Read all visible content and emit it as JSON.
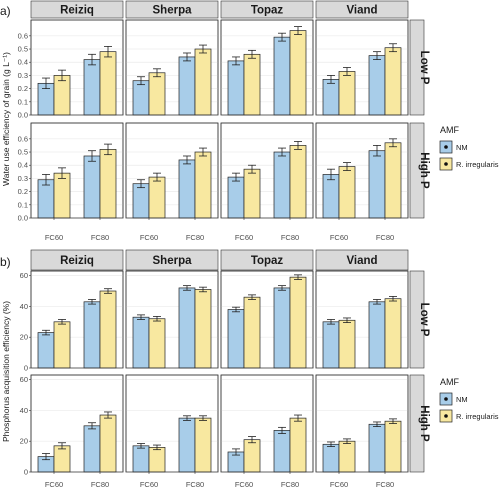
{
  "figure": {
    "legend": {
      "title": "AMF",
      "entries": [
        "NM",
        "R. irregularis"
      ],
      "colors": {
        "NM": "#a8cde9",
        "R. irregularis": "#f8e8a0"
      }
    },
    "panel_bg": "#ffffff",
    "strip_bg": "#d9d9d9",
    "grid_color": "#ebebeb"
  },
  "chart_data": [
    {
      "type": "bar",
      "panel_label": "a)",
      "ylabel": "Water use efficiency of grain (g L⁻¹)",
      "columns": [
        "Reiziq",
        "Sherpa",
        "Topaz",
        "Viand"
      ],
      "rows": [
        "Low P",
        "High P"
      ],
      "categories": [
        "FC60",
        "FC80"
      ],
      "ylim": [
        0,
        0.72
      ],
      "yticks": [
        0.0,
        0.1,
        0.2,
        0.3,
        0.4,
        0.5,
        0.6
      ],
      "ytick_labels": [
        "0.0",
        "0.1",
        "0.2",
        "0.3",
        "0.4",
        "0.5",
        "0.6"
      ],
      "series_names": [
        "NM",
        "R. irregularis"
      ],
      "data": {
        "Low P": {
          "Reiziq": {
            "NM": [
              0.24,
              0.42
            ],
            "R. irregularis": [
              0.3,
              0.48
            ]
          },
          "Sherpa": {
            "NM": [
              0.26,
              0.44
            ],
            "R. irregularis": [
              0.32,
              0.5
            ]
          },
          "Topaz": {
            "NM": [
              0.41,
              0.59
            ],
            "R. irregularis": [
              0.46,
              0.64
            ]
          },
          "Viand": {
            "NM": [
              0.27,
              0.45
            ],
            "R. irregularis": [
              0.33,
              0.51
            ]
          }
        },
        "High P": {
          "Reiziq": {
            "NM": [
              0.29,
              0.47
            ],
            "R. irregularis": [
              0.34,
              0.52
            ]
          },
          "Sherpa": {
            "NM": [
              0.26,
              0.44
            ],
            "R. irregularis": [
              0.31,
              0.5
            ]
          },
          "Topaz": {
            "NM": [
              0.31,
              0.5
            ],
            "R. irregularis": [
              0.37,
              0.55
            ]
          },
          "Viand": {
            "NM": [
              0.33,
              0.51
            ],
            "R. irregularis": [
              0.39,
              0.57
            ]
          }
        }
      },
      "errors": {
        "Low P": {
          "Reiziq": {
            "NM": [
              0.04,
              0.04
            ],
            "R. irregularis": [
              0.04,
              0.04
            ]
          },
          "Sherpa": {
            "NM": [
              0.03,
              0.03
            ],
            "R. irregularis": [
              0.03,
              0.03
            ]
          },
          "Topaz": {
            "NM": [
              0.03,
              0.03
            ],
            "R. irregularis": [
              0.03,
              0.03
            ]
          },
          "Viand": {
            "NM": [
              0.03,
              0.03
            ],
            "R. irregularis": [
              0.03,
              0.03
            ]
          }
        },
        "High P": {
          "Reiziq": {
            "NM": [
              0.04,
              0.04
            ],
            "R. irregularis": [
              0.04,
              0.04
            ]
          },
          "Sherpa": {
            "NM": [
              0.03,
              0.03
            ],
            "R. irregularis": [
              0.03,
              0.03
            ]
          },
          "Topaz": {
            "NM": [
              0.03,
              0.03
            ],
            "R. irregularis": [
              0.03,
              0.03
            ]
          },
          "Viand": {
            "NM": [
              0.04,
              0.04
            ],
            "R. irregularis": [
              0.03,
              0.03
            ]
          }
        }
      }
    },
    {
      "type": "bar",
      "panel_label": "b)",
      "ylabel": "Phosphorus acquisition efficiency (%)",
      "columns": [
        "Reiziq",
        "Sherpa",
        "Topaz",
        "Viand"
      ],
      "rows": [
        "Low P",
        "High P"
      ],
      "categories": [
        "FC60",
        "FC80"
      ],
      "ylim": [
        0,
        63
      ],
      "yticks": [
        0,
        20,
        40,
        60
      ],
      "ytick_labels": [
        "0",
        "20",
        "40",
        "60"
      ],
      "series_names": [
        "NM",
        "R. irregularis"
      ],
      "data": {
        "Low P": {
          "Reiziq": {
            "NM": [
              23,
              43
            ],
            "R. irregularis": [
              30,
              50
            ]
          },
          "Sherpa": {
            "NM": [
              33,
              52
            ],
            "R. irregularis": [
              32,
              51
            ]
          },
          "Topaz": {
            "NM": [
              38,
              52
            ],
            "R. irregularis": [
              46,
              59
            ]
          },
          "Viand": {
            "NM": [
              30,
              43
            ],
            "R. irregularis": [
              31,
              45
            ]
          }
        },
        "High P": {
          "Reiziq": {
            "NM": [
              10,
              30
            ],
            "R. irregularis": [
              17,
              37
            ]
          },
          "Sherpa": {
            "NM": [
              17,
              35
            ],
            "R. irregularis": [
              16,
              35
            ]
          },
          "Topaz": {
            "NM": [
              13,
              27
            ],
            "R. irregularis": [
              21,
              35
            ]
          },
          "Viand": {
            "NM": [
              18,
              31
            ],
            "R. irregularis": [
              20,
              33
            ]
          }
        }
      },
      "errors": {
        "Low P": {
          "Reiziq": {
            "NM": [
              1.5,
              1.5
            ],
            "R. irregularis": [
              1.5,
              1.5
            ]
          },
          "Sherpa": {
            "NM": [
              1.5,
              1.5
            ],
            "R. irregularis": [
              1.5,
              1.5
            ]
          },
          "Topaz": {
            "NM": [
              1.5,
              1.5
            ],
            "R. irregularis": [
              1.5,
              1.5
            ]
          },
          "Viand": {
            "NM": [
              1.5,
              1.5
            ],
            "R. irregularis": [
              1.5,
              1.5
            ]
          }
        },
        "High P": {
          "Reiziq": {
            "NM": [
              2,
              2
            ],
            "R. irregularis": [
              2,
              2
            ]
          },
          "Sherpa": {
            "NM": [
              1.5,
              1.5
            ],
            "R. irregularis": [
              1.5,
              1.5
            ]
          },
          "Topaz": {
            "NM": [
              2,
              2
            ],
            "R. irregularis": [
              2,
              2
            ]
          },
          "Viand": {
            "NM": [
              1.5,
              1.5
            ],
            "R. irregularis": [
              1.5,
              1.5
            ]
          }
        }
      }
    }
  ]
}
